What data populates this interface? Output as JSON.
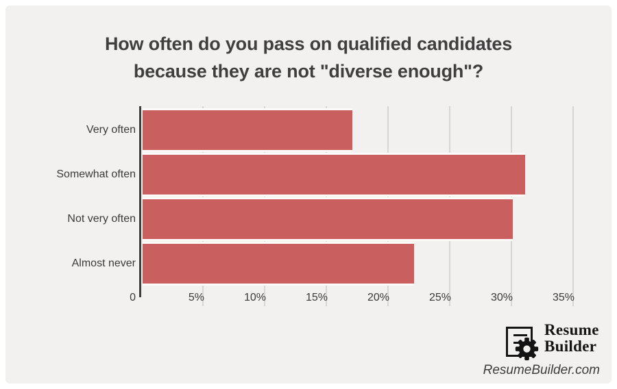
{
  "title": {
    "line1": "How often do you pass on qualified candidates",
    "line2": "because they are not \"diverse enough\"?"
  },
  "chart_data": {
    "type": "bar",
    "orientation": "horizontal",
    "title": "How often do you pass on qualified candidates because they are not \"diverse enough\"?",
    "categories": [
      "Very often",
      "Somewhat often",
      "Not very often",
      "Almost never"
    ],
    "values": [
      17,
      31,
      30,
      22
    ],
    "unit": "%",
    "xlabel": "",
    "ylabel": "",
    "xlim": [
      0,
      37.5
    ],
    "x_ticks": [
      "0",
      "5%",
      "10%",
      "15%",
      "20%",
      "25%",
      "30%",
      "35%"
    ],
    "x_tick_values": [
      0,
      5,
      10,
      15,
      20,
      25,
      30,
      35
    ],
    "grid": true,
    "legend": false,
    "bar_color": "#c95f5e"
  },
  "colors": {
    "panel_background": "#f2f1f0",
    "page_background": "#ffffff",
    "bar": "#c95f5e",
    "bar_separator": "#fbfaf8",
    "gridline": "#d7d6d4",
    "axis": "#3e3e3e",
    "text": "#3a3a3a",
    "title_text": "#3f3f3f",
    "logo_black": "#141414"
  },
  "branding": {
    "name_line1": "Resume",
    "name_line2": "Builder",
    "website": "ResumeBuilder.com"
  }
}
